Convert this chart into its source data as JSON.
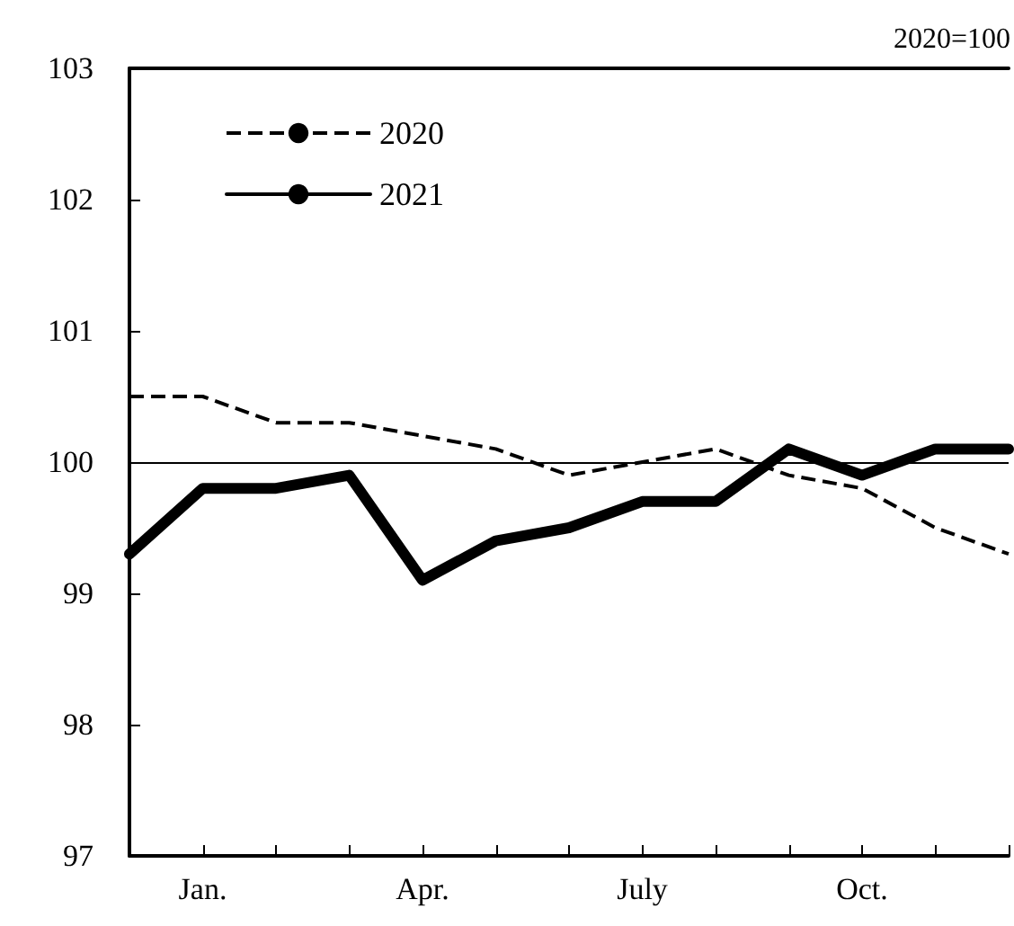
{
  "chart_data": {
    "type": "line",
    "annotations": [
      "2020=100"
    ],
    "categories": [
      null,
      "Jan.",
      null,
      null,
      "Apr.",
      null,
      null,
      "July",
      null,
      null,
      "Oct.",
      null,
      null
    ],
    "series": [
      {
        "name": "2020",
        "color": "#000000",
        "line_style": "dashed",
        "values": [
          100.5,
          100.5,
          100.3,
          100.3,
          100.2,
          100.1,
          99.9,
          100.0,
          100.1,
          99.9,
          99.8,
          99.5,
          99.3
        ]
      },
      {
        "name": "2021",
        "color": "#000000",
        "line_style": "solid",
        "values": [
          99.3,
          99.8,
          99.8,
          99.9,
          99.1,
          99.4,
          99.5,
          99.7,
          99.7,
          100.1,
          99.9,
          100.1,
          100.1
        ]
      }
    ],
    "ylim": [
      97,
      103
    ],
    "yticks": [
      97,
      98,
      99,
      100,
      101,
      102,
      103
    ],
    "ref_lines": [
      {
        "axis": "y",
        "value": 100,
        "color": "#000000"
      }
    ],
    "grid": false,
    "legend": "top left",
    "marker": "none"
  }
}
